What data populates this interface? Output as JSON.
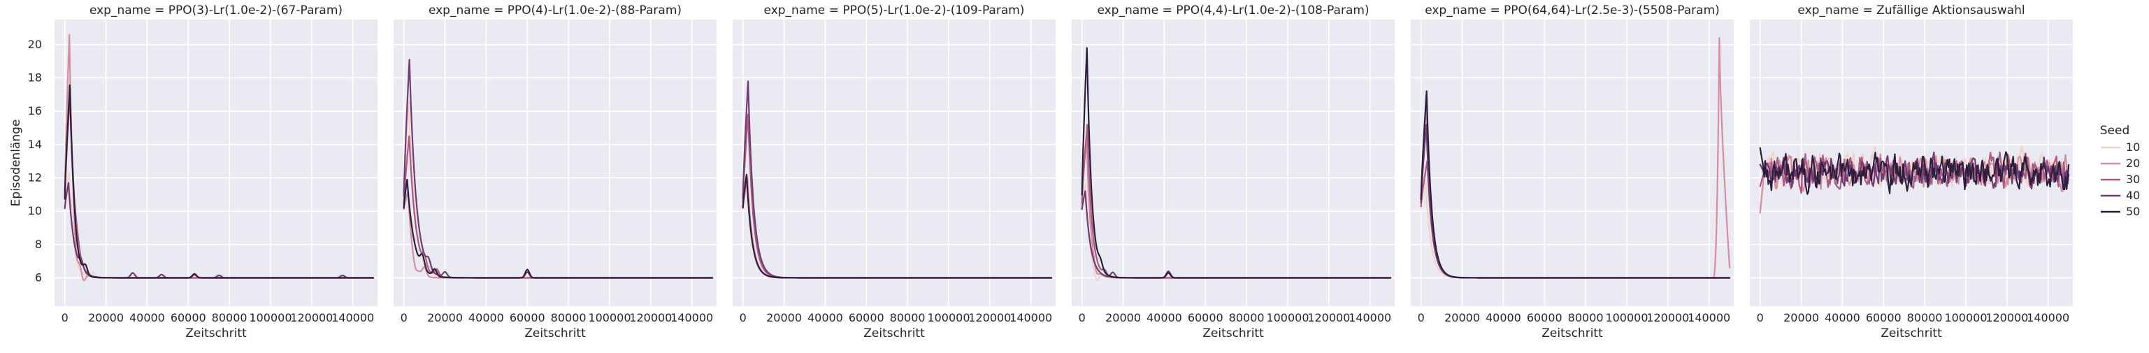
{
  "chart_data": {
    "type": "line",
    "xlabel": "Zeitschritt",
    "ylabel": "Episodenlänge",
    "xlim": [
      -5000,
      152000
    ],
    "ylim": [
      4.3,
      21.5
    ],
    "xticks": [
      0,
      20000,
      40000,
      60000,
      80000,
      100000,
      120000,
      140000
    ],
    "yticks": [
      6,
      8,
      10,
      12,
      14,
      16,
      18,
      20
    ],
    "grid": true,
    "legend": {
      "title": "Seed",
      "placement": "right",
      "entries": [
        "10",
        "20",
        "30",
        "40",
        "50"
      ]
    },
    "series_colors": [
      "#f1d4c9",
      "#d88d9c",
      "#ab5b83",
      "#703c71",
      "#2c1e3d"
    ],
    "facets": [
      {
        "title": "exp_name = PPO(3)-Lr(1.0e-2)-(67-Param)",
        "kind": "decay",
        "series": [
          {
            "seed": "10",
            "peak": 12.0,
            "peak_x": 2000,
            "tau": 2200,
            "extra": [
              [
                3000,
                0.5
              ],
              [
                14000,
                0.3
              ]
            ]
          },
          {
            "seed": "20",
            "peak": 20.6,
            "peak_x": 2200,
            "tau": 2000,
            "extra": [
              [
                5500,
                -1.2
              ],
              [
                9000,
                -0.6
              ]
            ]
          },
          {
            "seed": "30",
            "peak": 17.2,
            "peak_x": 2600,
            "tau": 2300,
            "extra": [
              [
                6000,
                0.4
              ]
            ]
          },
          {
            "seed": "40",
            "peak": 11.7,
            "peak_x": 1800,
            "tau": 2800,
            "extra": [
              [
                8000,
                0.5
              ],
              [
                33000,
                0.3
              ],
              [
                47000,
                0.2
              ],
              [
                63000,
                0.25
              ],
              [
                75000,
                0.15
              ],
              [
                135000,
                0.15
              ]
            ]
          },
          {
            "seed": "50",
            "peak": 17.4,
            "peak_x": 2400,
            "tau": 2100,
            "extra": [
              [
                4000,
                0.6
              ],
              [
                10000,
                0.5
              ],
              [
                63000,
                0.2
              ]
            ]
          }
        ]
      },
      {
        "title": "exp_name = PPO(4)-Lr(1.0e-2)-(88-Param)",
        "kind": "decay",
        "series": [
          {
            "seed": "10",
            "peak": 16.6,
            "peak_x": 2400,
            "tau": 3000,
            "extra": [
              [
                13000,
                0.3
              ]
            ]
          },
          {
            "seed": "20",
            "peak": 11.2,
            "peak_x": 2000,
            "tau": 2200,
            "extra": [
              [
                5500,
                -0.4
              ],
              [
                10000,
                0.5
              ]
            ]
          },
          {
            "seed": "30",
            "peak": 14.5,
            "peak_x": 2600,
            "tau": 3200,
            "extra": [
              [
                10000,
                0.6
              ],
              [
                16000,
                0.4
              ]
            ]
          },
          {
            "seed": "40",
            "peak": 19.1,
            "peak_x": 2700,
            "tau": 3200,
            "extra": [
              [
                12000,
                0.5
              ],
              [
                20000,
                0.3
              ],
              [
                60000,
                0.35
              ]
            ]
          },
          {
            "seed": "50",
            "peak": 11.9,
            "peak_x": 1600,
            "tau": 3500,
            "extra": [
              [
                9000,
                0.7
              ],
              [
                15000,
                0.4
              ],
              [
                60000,
                0.5
              ]
            ]
          }
        ]
      },
      {
        "title": "exp_name = PPO(5)-Lr(1.0e-2)-(109-Param)",
        "kind": "decay",
        "series": [
          {
            "seed": "10",
            "peak": 11.5,
            "peak_x": 2000,
            "tau": 2500,
            "extra": []
          },
          {
            "seed": "20",
            "peak": 12.0,
            "peak_x": 2200,
            "tau": 2600,
            "extra": []
          },
          {
            "seed": "30",
            "peak": 15.8,
            "peak_x": 2500,
            "tau": 2600,
            "extra": []
          },
          {
            "seed": "40",
            "peak": 17.8,
            "peak_x": 2500,
            "tau": 2700,
            "extra": []
          },
          {
            "seed": "50",
            "peak": 12.2,
            "peak_x": 1800,
            "tau": 2600,
            "extra": []
          }
        ]
      },
      {
        "title": "exp_name = PPO(4,4)-Lr(1.0e-2)-(108-Param)",
        "kind": "decay",
        "series": [
          {
            "seed": "10",
            "peak": 11.6,
            "peak_x": 1800,
            "tau": 2000,
            "extra": [
              [
                7000,
                -0.5
              ]
            ]
          },
          {
            "seed": "20",
            "peak": 14.5,
            "peak_x": 2200,
            "tau": 2000,
            "extra": [
              [
                7000,
                -0.4
              ]
            ]
          },
          {
            "seed": "30",
            "peak": 15.2,
            "peak_x": 2600,
            "tau": 2200,
            "extra": [
              [
                11000,
                0.3
              ]
            ]
          },
          {
            "seed": "40",
            "peak": 11.2,
            "peak_x": 1600,
            "tau": 2600,
            "extra": [
              [
                15000,
                0.3
              ],
              [
                42000,
                0.4
              ]
            ]
          },
          {
            "seed": "50",
            "peak": 19.8,
            "peak_x": 2400,
            "tau": 2300,
            "extra": [
              [
                9000,
                0.4
              ],
              [
                42000,
                0.3
              ]
            ]
          }
        ]
      },
      {
        "title": "exp_name = PPO(64,64)-Lr(2.5e-3)-(5508-Param)",
        "kind": "decay",
        "series": [
          {
            "seed": "10",
            "peak": 11.8,
            "peak_x": 2200,
            "tau": 2600,
            "extra": []
          },
          {
            "seed": "20",
            "peak": 16.5,
            "peak_x": 2600,
            "tau": 2500,
            "extra": [],
            "late_spike": {
              "start": 142000,
              "peak_x": 145000,
              "peak": 20.4,
              "end": 150000,
              "end_value": 6.6
            }
          },
          {
            "seed": "30",
            "peak": 13.0,
            "peak_x": 3000,
            "tau": 2600,
            "extra": []
          },
          {
            "seed": "40",
            "peak": 15.2,
            "peak_x": 2600,
            "tau": 2500,
            "extra": []
          },
          {
            "seed": "50",
            "peak": 17.2,
            "peak_x": 2700,
            "tau": 2500,
            "extra": []
          }
        ]
      },
      {
        "title": "exp_name = Zufällige Aktionsauswahl",
        "kind": "noise",
        "series": [
          {
            "seed": "10",
            "mean": 12.6,
            "amp": 0.75,
            "start": 10.2
          },
          {
            "seed": "20",
            "mean": 12.4,
            "amp": 0.7,
            "start": 9.9
          },
          {
            "seed": "30",
            "mean": 12.4,
            "amp": 0.7,
            "start": 11.5
          },
          {
            "seed": "40",
            "mean": 12.3,
            "amp": 0.7,
            "start": 12.8
          },
          {
            "seed": "50",
            "mean": 12.3,
            "amp": 0.75,
            "start": 13.8
          }
        ]
      }
    ]
  }
}
